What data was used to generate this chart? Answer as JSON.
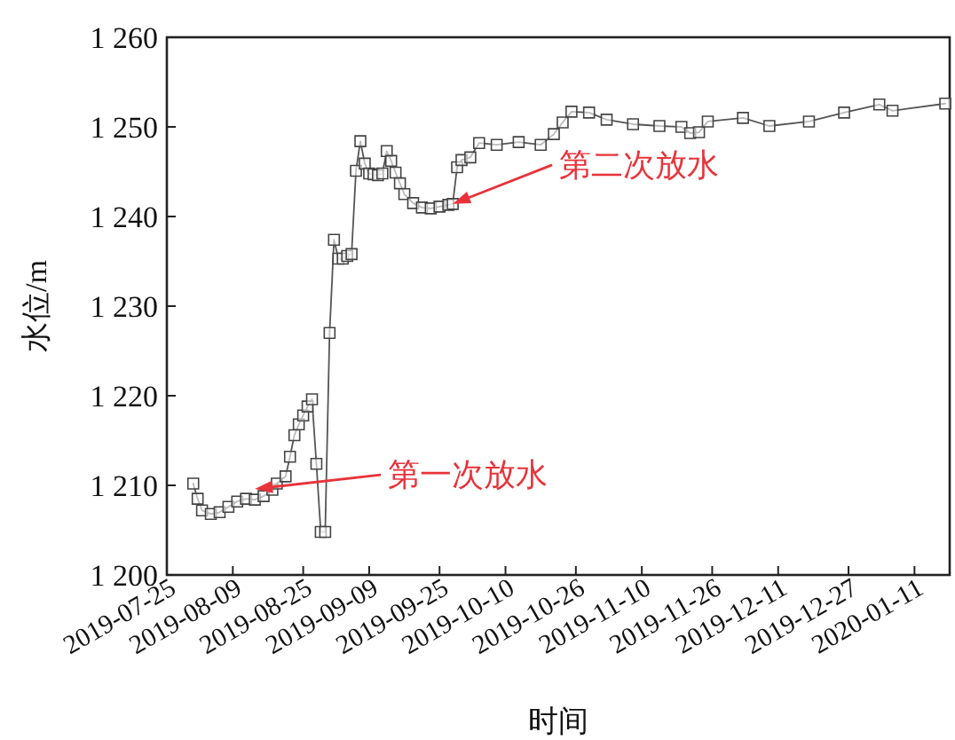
{
  "chart_data": {
    "type": "line",
    "xlabel": "时间",
    "ylabel": "水位/m",
    "marker": "square",
    "x": [
      "2019-07-31",
      "2019-08-01",
      "2019-08-02",
      "2019-08-04",
      "2019-08-06",
      "2019-08-08",
      "2019-08-10",
      "2019-08-12",
      "2019-08-14",
      "2019-08-16",
      "2019-08-18",
      "2019-08-19",
      "2019-08-21",
      "2019-08-22",
      "2019-08-23",
      "2019-08-24",
      "2019-08-25",
      "2019-08-26",
      "2019-08-27",
      "2019-08-28",
      "2019-08-29",
      "2019-08-30",
      "2019-08-31",
      "2019-09-01",
      "2019-09-02",
      "2019-09-03",
      "2019-09-04",
      "2019-09-05",
      "2019-09-06",
      "2019-09-07",
      "2019-09-08",
      "2019-09-09",
      "2019-09-10",
      "2019-09-11",
      "2019-09-12",
      "2019-09-13",
      "2019-09-14",
      "2019-09-15",
      "2019-09-16",
      "2019-09-17",
      "2019-09-19",
      "2019-09-21",
      "2019-09-23",
      "2019-09-25",
      "2019-09-27",
      "2019-09-28",
      "2019-09-29",
      "2019-09-30",
      "2019-10-02",
      "2019-10-04",
      "2019-10-08",
      "2019-10-13",
      "2019-10-18",
      "2019-10-21",
      "2019-10-23",
      "2019-10-25",
      "2019-10-29",
      "2019-11-02",
      "2019-11-08",
      "2019-11-14",
      "2019-11-19",
      "2019-11-21",
      "2019-11-23",
      "2019-11-25",
      "2019-12-03",
      "2019-12-09",
      "2019-12-18",
      "2019-12-26",
      "2020-01-03",
      "2020-01-06",
      "2020-01-18"
    ],
    "series": [
      {
        "color": "#555555",
        "values": [
          1210.2,
          1208.5,
          1207.2,
          1206.8,
          1207.0,
          1207.6,
          1208.2,
          1208.5,
          1208.4,
          1208.8,
          1209.5,
          1210.2,
          1211.0,
          1213.2,
          1215.6,
          1216.8,
          1217.8,
          1218.8,
          1219.6,
          1212.4,
          1204.8,
          1204.8,
          1227.0,
          1237.4,
          1235.3,
          1235.3,
          1235.6,
          1235.8,
          1245.1,
          1248.4,
          1245.9,
          1244.8,
          1244.7,
          1244.6,
          1244.8,
          1247.3,
          1246.2,
          1244.9,
          1243.7,
          1242.5,
          1241.5,
          1241.0,
          1240.9,
          1241.1,
          1241.3,
          1241.4,
          1245.5,
          1246.3,
          1246.6,
          1248.2,
          1248.0,
          1248.3,
          1248.0,
          1249.2,
          1250.5,
          1251.7,
          1251.6,
          1250.8,
          1250.3,
          1250.1,
          1250.0,
          1249.3,
          1249.4,
          1250.6,
          1251.0,
          1250.1,
          1250.6,
          1251.6,
          1252.5,
          1251.8,
          1252.6
        ]
      }
    ],
    "xlim": [
      "2019-07-25",
      "2020-01-19"
    ],
    "xticks": [
      "2019-07-25",
      "2019-08-09",
      "2019-08-25",
      "2019-09-09",
      "2019-09-25",
      "2019-10-10",
      "2019-10-26",
      "2019-11-10",
      "2019-11-26",
      "2019-12-11",
      "2019-12-27",
      "2020-01-11"
    ],
    "ylim": [
      1200,
      1260
    ],
    "yticks": [
      {
        "value": 1200,
        "label": "1 200"
      },
      {
        "value": 1210,
        "label": "1 210"
      },
      {
        "value": 1220,
        "label": "1 220"
      },
      {
        "value": 1230,
        "label": "1 230"
      },
      {
        "value": 1240,
        "label": "1 240"
      },
      {
        "value": 1250,
        "label": "1 250"
      },
      {
        "value": 1260,
        "label": "1 260"
      }
    ],
    "annotations": [
      {
        "text": "第一次放水",
        "x": "2019-08-14",
        "y": 1209.6
      },
      {
        "text": "第二次放水",
        "x": "2019-09-28",
        "y": 1241.4
      }
    ]
  }
}
